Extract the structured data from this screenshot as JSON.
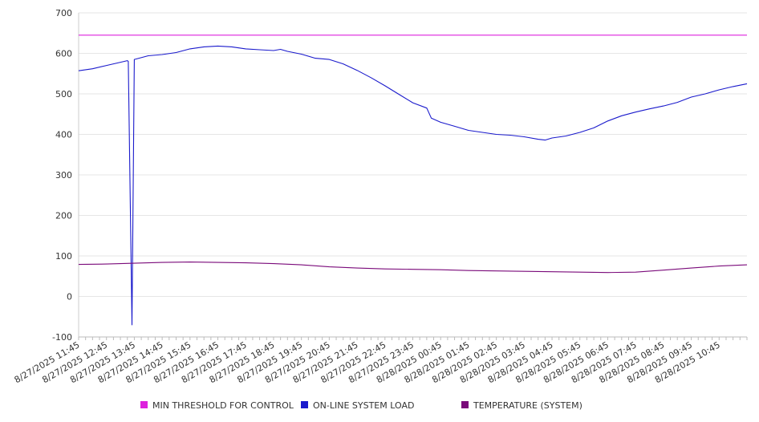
{
  "chart_data": {
    "type": "line",
    "title": "",
    "xlabel": "",
    "ylabel": "",
    "ylim": [
      -100,
      700
    ],
    "yticks": [
      -100,
      0,
      100,
      200,
      300,
      400,
      500,
      600,
      700
    ],
    "grid": true,
    "legend_position": "bottom",
    "xticks": [
      "8/27/2025 11:45",
      "8/27/2025 12:45",
      "8/27/2025 13:45",
      "8/27/2025 14:45",
      "8/27/2025 15:45",
      "8/27/2025 16:45",
      "8/27/2025 17:45",
      "8/27/2025 18:45",
      "8/27/2025 19:45",
      "8/27/2025 20:45",
      "8/27/2025 21:45",
      "8/27/2025 22:45",
      "8/27/2025 23:45",
      "8/28/2025 00:45",
      "8/28/2025 01:45",
      "8/28/2025 02:45",
      "8/28/2025 03:45",
      "8/28/2025 04:45",
      "8/28/2025 05:45",
      "8/28/2025 06:45",
      "8/28/2025 07:45",
      "8/28/2025 08:45",
      "8/28/2025 09:45",
      "8/28/2025 10:45"
    ],
    "x_start": "2025-08-27T11:45",
    "x_end": "2025-08-28T11:45",
    "series": [
      {
        "name": "MIN THRESHOLD FOR CONTROL",
        "color": "#dd22dd",
        "points": [
          [
            "2025-08-27T11:45",
            645
          ],
          [
            "2025-08-28T11:45",
            645
          ]
        ]
      },
      {
        "name": "ON-LINE SYSTEM LOAD",
        "color": "#1a1acc",
        "points": [
          [
            "2025-08-27T11:45",
            557
          ],
          [
            "2025-08-27T12:15",
            562
          ],
          [
            "2025-08-27T12:45",
            570
          ],
          [
            "2025-08-27T13:15",
            578
          ],
          [
            "2025-08-27T13:30",
            582
          ],
          [
            "2025-08-27T13:32",
            580
          ],
          [
            "2025-08-27T13:40",
            -70
          ],
          [
            "2025-08-27T13:45",
            585
          ],
          [
            "2025-08-27T14:15",
            594
          ],
          [
            "2025-08-27T14:45",
            597
          ],
          [
            "2025-08-27T15:15",
            602
          ],
          [
            "2025-08-27T15:45",
            611
          ],
          [
            "2025-08-27T16:15",
            616
          ],
          [
            "2025-08-27T16:45",
            618
          ],
          [
            "2025-08-27T17:15",
            616
          ],
          [
            "2025-08-27T17:45",
            611
          ],
          [
            "2025-08-27T18:15",
            609
          ],
          [
            "2025-08-27T18:45",
            607
          ],
          [
            "2025-08-27T19:00",
            610
          ],
          [
            "2025-08-27T19:15",
            605
          ],
          [
            "2025-08-27T19:45",
            598
          ],
          [
            "2025-08-27T20:15",
            588
          ],
          [
            "2025-08-27T20:45",
            585
          ],
          [
            "2025-08-27T21:15",
            574
          ],
          [
            "2025-08-27T21:45",
            558
          ],
          [
            "2025-08-27T22:15",
            540
          ],
          [
            "2025-08-27T22:45",
            520
          ],
          [
            "2025-08-27T23:15",
            499
          ],
          [
            "2025-08-27T23:45",
            478
          ],
          [
            "2025-08-28T00:15",
            465
          ],
          [
            "2025-08-28T00:25",
            440
          ],
          [
            "2025-08-28T00:45",
            430
          ],
          [
            "2025-08-28T01:15",
            420
          ],
          [
            "2025-08-28T01:45",
            410
          ],
          [
            "2025-08-28T02:15",
            405
          ],
          [
            "2025-08-28T02:45",
            400
          ],
          [
            "2025-08-28T03:15",
            398
          ],
          [
            "2025-08-28T03:45",
            394
          ],
          [
            "2025-08-28T04:15",
            388
          ],
          [
            "2025-08-28T04:30",
            386
          ],
          [
            "2025-08-28T04:45",
            391
          ],
          [
            "2025-08-28T05:15",
            396
          ],
          [
            "2025-08-28T05:45",
            405
          ],
          [
            "2025-08-28T06:15",
            416
          ],
          [
            "2025-08-28T06:45",
            433
          ],
          [
            "2025-08-28T07:15",
            446
          ],
          [
            "2025-08-28T07:45",
            455
          ],
          [
            "2025-08-28T08:15",
            463
          ],
          [
            "2025-08-28T08:45",
            470
          ],
          [
            "2025-08-28T09:15",
            479
          ],
          [
            "2025-08-28T09:45",
            492
          ],
          [
            "2025-08-28T10:15",
            500
          ],
          [
            "2025-08-28T10:45",
            510
          ],
          [
            "2025-08-28T11:15",
            518
          ],
          [
            "2025-08-28T11:45",
            525
          ]
        ]
      },
      {
        "name": "TEMPERATURE (SYSTEM)",
        "color": "#7a0a7a",
        "points": [
          [
            "2025-08-27T11:45",
            79
          ],
          [
            "2025-08-27T12:45",
            80
          ],
          [
            "2025-08-27T13:45",
            82
          ],
          [
            "2025-08-27T14:45",
            84
          ],
          [
            "2025-08-27T15:45",
            85
          ],
          [
            "2025-08-27T16:45",
            84
          ],
          [
            "2025-08-27T17:45",
            83
          ],
          [
            "2025-08-27T18:45",
            81
          ],
          [
            "2025-08-27T19:45",
            78
          ],
          [
            "2025-08-27T20:45",
            73
          ],
          [
            "2025-08-27T21:45",
            70
          ],
          [
            "2025-08-27T22:45",
            68
          ],
          [
            "2025-08-27T23:45",
            67
          ],
          [
            "2025-08-28T00:45",
            66
          ],
          [
            "2025-08-28T01:45",
            64
          ],
          [
            "2025-08-28T02:45",
            63
          ],
          [
            "2025-08-28T03:45",
            62
          ],
          [
            "2025-08-28T04:45",
            61
          ],
          [
            "2025-08-28T05:45",
            60
          ],
          [
            "2025-08-28T06:45",
            59
          ],
          [
            "2025-08-28T07:45",
            60
          ],
          [
            "2025-08-28T08:45",
            65
          ],
          [
            "2025-08-28T09:45",
            70
          ],
          [
            "2025-08-28T10:45",
            75
          ],
          [
            "2025-08-28T11:45",
            78
          ]
        ]
      }
    ]
  }
}
